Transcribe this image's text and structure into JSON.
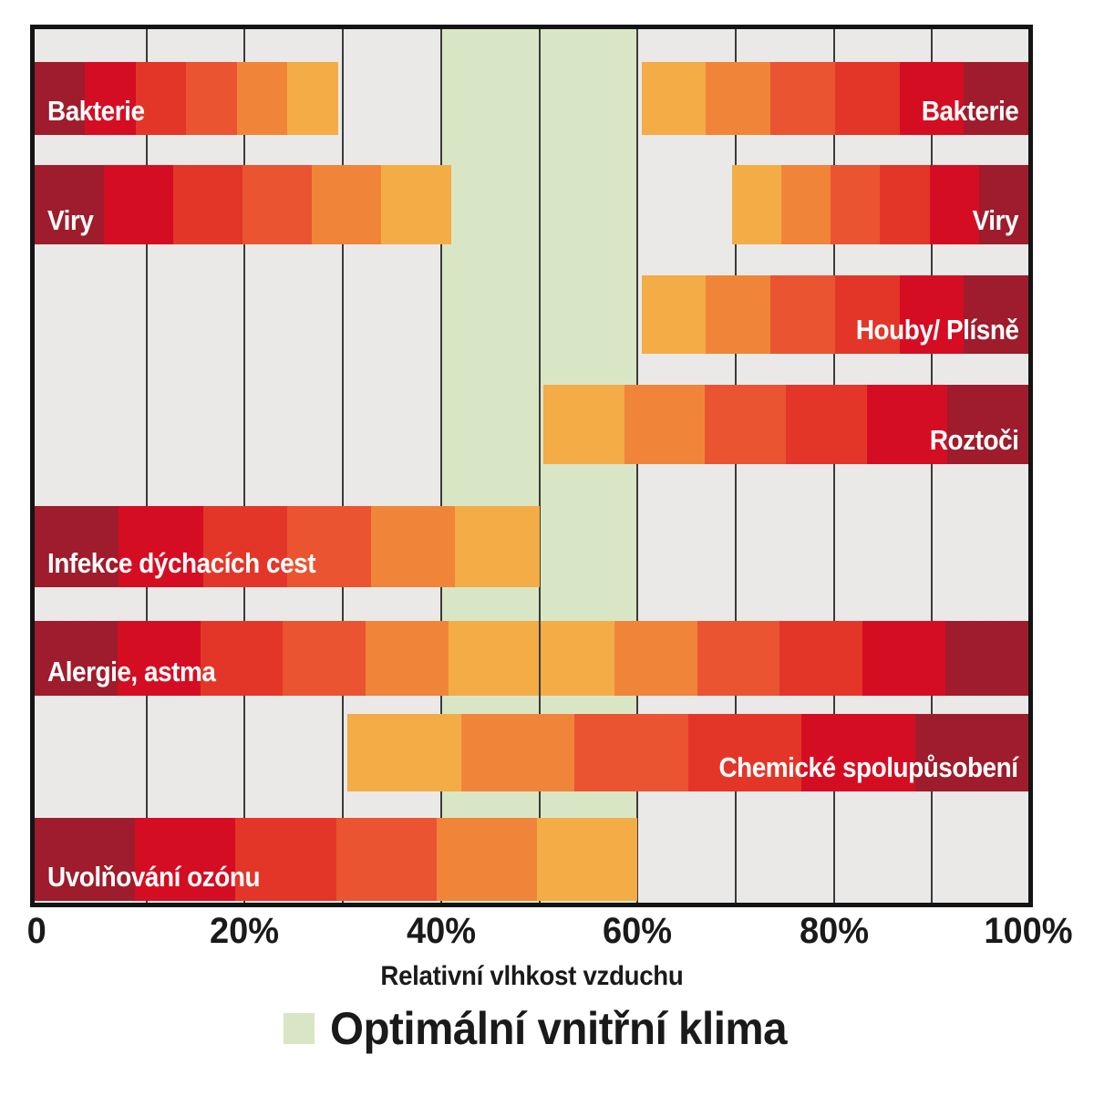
{
  "chart_data": {
    "type": "bar",
    "variant": "horizontal-range-bars",
    "title": "",
    "xlabel": "Relativní vlhkost vzduchu",
    "x_range": [
      0,
      100
    ],
    "x_ticks": [
      {
        "label": "0",
        "value": 0
      },
      {
        "label": "20%",
        "value": 20
      },
      {
        "label": "40%",
        "value": 40
      },
      {
        "label": "60%",
        "value": 60
      },
      {
        "label": "80%",
        "value": 80
      },
      {
        "label": "100%",
        "value": 100
      }
    ],
    "grid": {
      "every_percent": 10,
      "color": "#3a3a3a",
      "shown": true
    },
    "plot_background": "#eae9e8",
    "border_color": "#141414",
    "optimal_zone": {
      "legend_label": "Optimální vnitřní klima",
      "from": 40,
      "to": 60,
      "color": "#d9e6c5"
    },
    "color_ramp_dark_to_light": [
      "#9e1c2b",
      "#d50d22",
      "#e33629",
      "#ea5431",
      "#f08539",
      "#f4ac46"
    ],
    "rows": [
      {
        "name": "bakterie",
        "bars": [
          {
            "label": "Bakterie",
            "label_align": "left",
            "from": 0,
            "to": 29.5,
            "ramp": "dark_to_light"
          },
          {
            "label": "Bakterie",
            "label_align": "right",
            "from": 60.4,
            "to": 100,
            "ramp": "light_to_dark"
          }
        ]
      },
      {
        "name": "viry",
        "bars": [
          {
            "label": "Viry",
            "label_align": "left",
            "from": 0,
            "to": 41,
            "ramp": "dark_to_light"
          },
          {
            "label": "Viry",
            "label_align": "right",
            "from": 69.6,
            "to": 100,
            "ramp": "light_to_dark"
          }
        ]
      },
      {
        "name": "houby-plisne",
        "bars": [
          {
            "label": "Houby/ Plísně",
            "label_align": "right",
            "from": 60.4,
            "to": 100,
            "ramp": "light_to_dark"
          }
        ]
      },
      {
        "name": "roztoci",
        "bars": [
          {
            "label": "Roztoči",
            "label_align": "right",
            "from": 50.4,
            "to": 100,
            "ramp": "light_to_dark"
          }
        ]
      },
      {
        "name": "infekce-dychacich-cest",
        "bars": [
          {
            "label": "Infekce dýchacích cest",
            "label_align": "left",
            "from": 0,
            "to": 50,
            "ramp": "dark_to_light"
          }
        ]
      },
      {
        "name": "alergie-astma",
        "bars": [
          {
            "label": "Alergie, astma",
            "label_align": "left",
            "from": 0,
            "to": 100,
            "ramp": "dark_light_dark",
            "gridline_overlay_at": 50
          }
        ]
      },
      {
        "name": "chemicke-spolupusobeni",
        "bars": [
          {
            "label": "Chemické spolupůsobení",
            "label_align": "right",
            "from": 30.5,
            "to": 100,
            "ramp": "light_to_dark"
          }
        ]
      },
      {
        "name": "uvolnovani-ozonu",
        "bars": [
          {
            "label": "Uvolňování ozónu",
            "label_align": "left",
            "from": 0,
            "to": 60,
            "ramp": "dark_to_light"
          }
        ]
      }
    ]
  }
}
